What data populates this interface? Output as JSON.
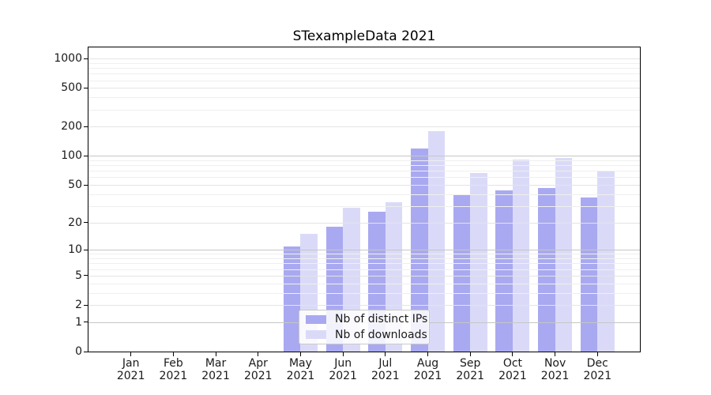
{
  "chart_data": {
    "type": "bar",
    "title": "STexampleData 2021",
    "categories": [
      "Jan",
      "Feb",
      "Mar",
      "Apr",
      "May",
      "Jun",
      "Jul",
      "Aug",
      "Sep",
      "Oct",
      "Nov",
      "Dec"
    ],
    "year_label": "2021",
    "series": [
      {
        "name": "Nb of distinct IPs",
        "color": "#a9a9f1",
        "values": [
          0,
          0,
          0,
          0,
          11,
          18,
          26,
          120,
          40,
          44,
          46,
          37
        ]
      },
      {
        "name": "Nb of downloads",
        "color": "#dadaf8",
        "values": [
          0,
          0,
          0,
          0,
          15,
          29,
          33,
          180,
          67,
          92,
          96,
          69
        ]
      }
    ],
    "y_axis": {
      "scale": "log1p",
      "ticks": [
        0,
        1,
        2,
        5,
        10,
        20,
        50,
        100,
        200,
        500,
        1000
      ],
      "major_gridlines": [
        1,
        10,
        100
      ],
      "minor_gridlines": [
        3,
        4,
        6,
        7,
        8,
        9,
        30,
        40,
        60,
        70,
        80,
        90,
        300,
        400,
        600,
        700,
        800,
        900
      ],
      "range_top": 1300
    },
    "legend": {
      "position": "lower center",
      "entries": [
        "Nb of distinct IPs",
        "Nb of downloads"
      ]
    },
    "grid": true
  },
  "colors": {
    "bar_dark": "#a9a9f1",
    "bar_light": "#dadaf8",
    "grid_major": "#c6c6c6",
    "grid_tick": "#e4e4e4",
    "grid_minor": "#efefef",
    "spine": "#000000",
    "text": "#1a1a1a",
    "legend_border": "#c9c9c9"
  }
}
